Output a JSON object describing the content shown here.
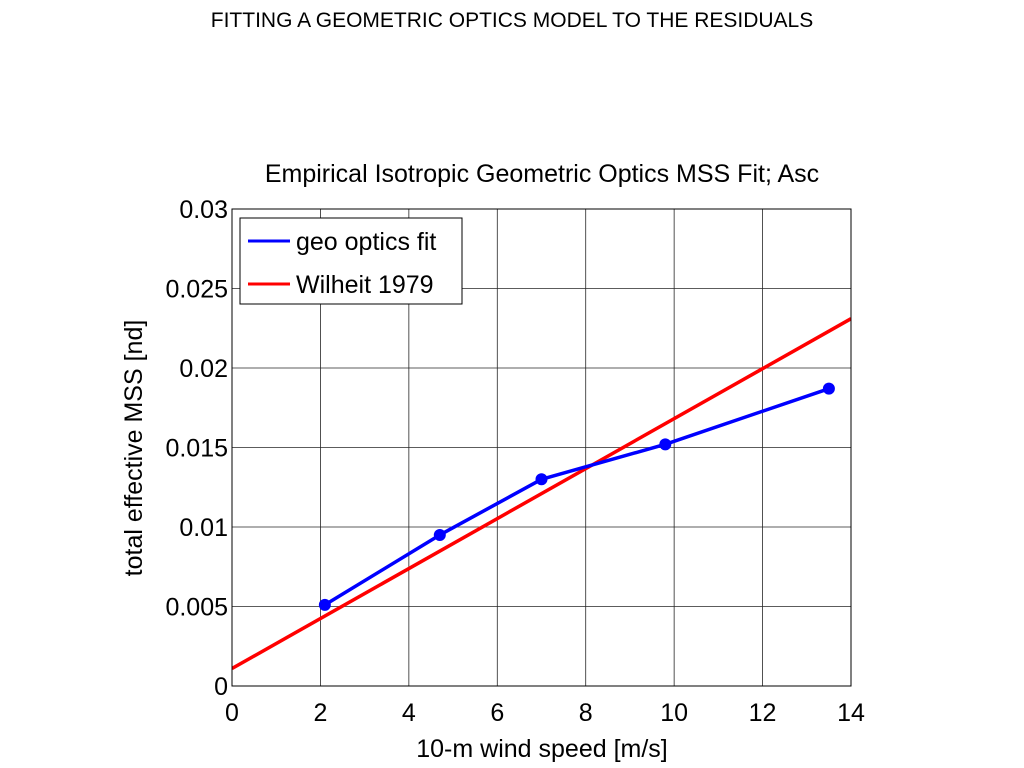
{
  "slide": {
    "title": "FITTING A GEOMETRIC OPTICS MODEL TO THE RESIDUALS"
  },
  "chart_data": {
    "type": "line",
    "title": "Empirical Isotropic Geometric Optics MSS Fit; Asc",
    "xlabel": "10-m wind speed [m/s]",
    "ylabel": "total effective MSS [nd]",
    "xlim": [
      0,
      14
    ],
    "ylim": [
      0,
      0.03
    ],
    "xticks": [
      0,
      2,
      4,
      6,
      8,
      10,
      12,
      14
    ],
    "yticks": [
      0,
      0.005,
      0.01,
      0.015,
      0.02,
      0.025,
      0.03
    ],
    "xtick_labels": [
      "0",
      "2",
      "4",
      "6",
      "8",
      "10",
      "12",
      "14"
    ],
    "ytick_labels": [
      "0",
      "0.005",
      "0.01",
      "0.015",
      "0.02",
      "0.025",
      "0.03"
    ],
    "grid": true,
    "legend_position": "top-left",
    "series": [
      {
        "name": "geo optics fit",
        "color": "#0000ff",
        "markers": true,
        "x": [
          2.1,
          4.7,
          7.0,
          9.8,
          13.5
        ],
        "y": [
          0.0051,
          0.0095,
          0.013,
          0.0152,
          0.0187
        ]
      },
      {
        "name": "Wilheit 1979",
        "color": "#ff0000",
        "markers": false,
        "x": [
          0,
          14
        ],
        "y": [
          0.0011,
          0.0231
        ]
      }
    ]
  }
}
